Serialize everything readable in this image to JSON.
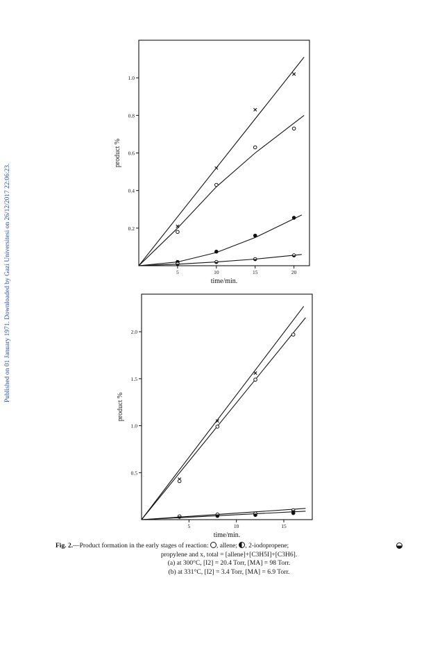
{
  "sidebar_note": "Published on 01 January 1971. Downloaded by Gazi Universitesi on 26/12/2017 22:06:23.",
  "caption": {
    "fig_label": "Fig. 2.",
    "line1_text": "—Product formation in the early stages of reaction:",
    "legend_allene": "allene",
    "legend_iodopropene": "2-iodopropene",
    "line2": "propylene and x, total = [allene]+[C3H5I]+[C3H6].",
    "line3": "(a) at 300°C, [I2] = 20.4 Torr, [MA] = 98 Torr.",
    "line4": "(b) at 331°C, [I2] = 3.4 Torr, [MA] = 6.9 Torr."
  },
  "chart_data": [
    {
      "type": "scatter",
      "xlabel": "time/min.",
      "ylabel": "product %",
      "xlim": [
        0,
        22
      ],
      "ylim": [
        0,
        1.2
      ],
      "x_ticks": [
        5,
        10,
        15,
        20
      ],
      "x_tick_labels": [
        "5",
        "10",
        "15",
        "20"
      ],
      "y_ticks": [
        0.2,
        0.4,
        0.6,
        0.8,
        1.0
      ],
      "y_tick_labels": [
        "0.2",
        "0.4",
        "0.6",
        "0.8",
        "1.0"
      ],
      "series": [
        {
          "marker": "x",
          "x": [
            5,
            10,
            15,
            20
          ],
          "y": [
            0.21,
            0.52,
            0.83,
            1.02
          ],
          "line_x": [
            0,
            21.3
          ],
          "line_y": [
            0,
            1.11
          ]
        },
        {
          "marker": "open-circle",
          "x": [
            5,
            10,
            15,
            20
          ],
          "y": [
            0.18,
            0.43,
            0.63,
            0.73
          ],
          "line_x": [
            0,
            5,
            10,
            15,
            21.3
          ],
          "line_y": [
            0,
            0.2,
            0.42,
            0.6,
            0.8
          ]
        },
        {
          "marker": "filled-circle",
          "x": [
            5,
            10,
            15,
            20
          ],
          "y": [
            0.02,
            0.075,
            0.16,
            0.255
          ],
          "line_x": [
            0,
            5,
            10,
            15,
            21
          ],
          "line_y": [
            0,
            0.02,
            0.07,
            0.15,
            0.27
          ]
        },
        {
          "marker": "half-circle",
          "x": [
            5,
            10,
            15,
            20
          ],
          "y": [
            0.01,
            0.02,
            0.035,
            0.055
          ],
          "line_x": [
            0,
            5,
            10,
            15,
            21
          ],
          "line_y": [
            0,
            0.008,
            0.02,
            0.035,
            0.06
          ]
        }
      ]
    },
    {
      "type": "scatter",
      "xlabel": "time/min.",
      "ylabel": "product %",
      "xlim": [
        0,
        18
      ],
      "ylim": [
        0,
        2.4
      ],
      "x_ticks": [
        5,
        10,
        15
      ],
      "x_tick_labels": [
        "5",
        "10",
        "15"
      ],
      "y_ticks": [
        0.5,
        1.0,
        1.5,
        2.0
      ],
      "y_tick_labels": [
        "0.5",
        "1.0",
        "1.5",
        "2.0"
      ],
      "series": [
        {
          "marker": "x",
          "x": [
            4,
            8,
            12
          ],
          "y": [
            0.43,
            1.05,
            1.56
          ],
          "line_x": [
            0,
            17.1
          ],
          "line_y": [
            0,
            2.27
          ]
        },
        {
          "marker": "open-circle",
          "x": [
            4,
            8,
            12,
            16
          ],
          "y": [
            0.41,
            0.99,
            1.49,
            1.97
          ],
          "line_x": [
            0,
            17.3
          ],
          "line_y": [
            0,
            2.15
          ]
        },
        {
          "marker": "filled-circle",
          "x": [
            4,
            8,
            12,
            16
          ],
          "y": [
            0.03,
            0.04,
            0.05,
            0.07
          ],
          "line_x": [
            0,
            17.3
          ],
          "line_y": [
            0,
            0.09
          ]
        },
        {
          "marker": "half-circle",
          "x": [
            4,
            8,
            12,
            16
          ],
          "y": [
            0.035,
            0.055,
            0.065,
            0.1
          ],
          "line_x": [
            0,
            17.3
          ],
          "line_y": [
            0,
            0.12
          ]
        }
      ]
    }
  ]
}
